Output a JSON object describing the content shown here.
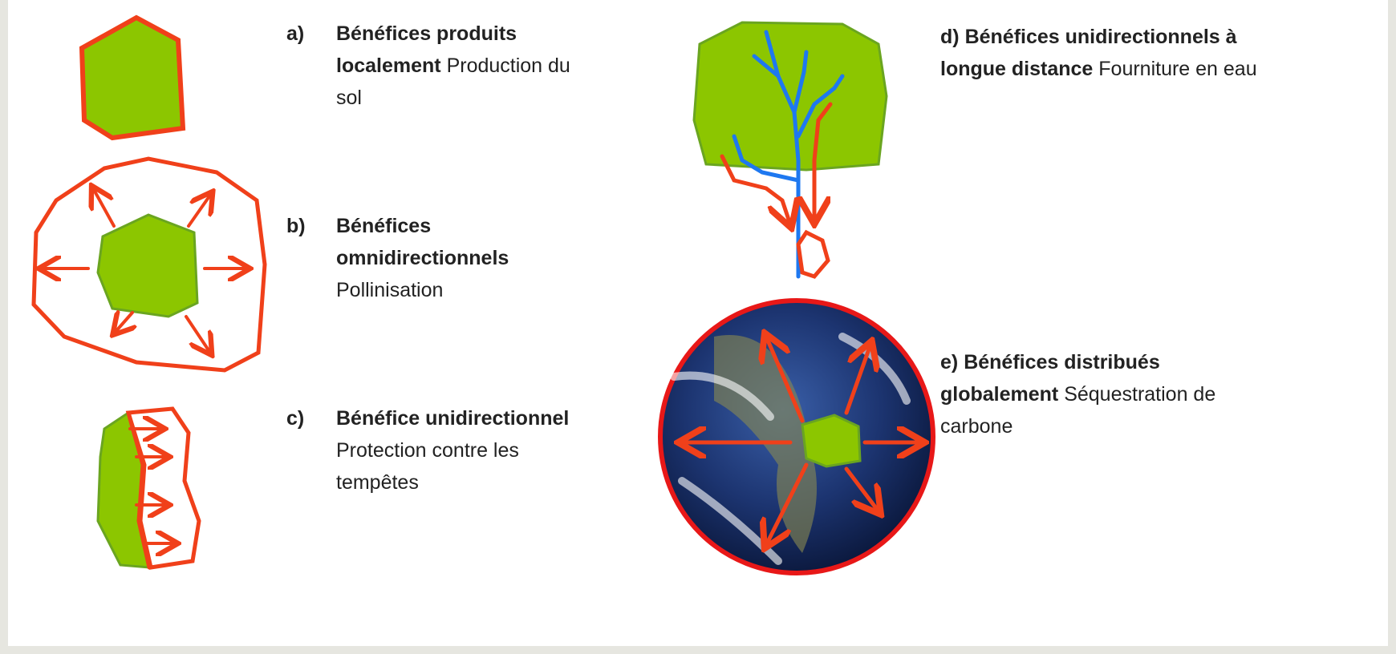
{
  "items": [
    {
      "marker": "a)",
      "title": "Bénéfices produits localement",
      "description": "Production du sol"
    },
    {
      "marker": "b)",
      "title": "Bénéfices omnidirectionnels",
      "description": "Pollinisation"
    },
    {
      "marker": "c)",
      "title": "Bénéfice unidirectionnel",
      "description": "Protection contre les tempêtes"
    },
    {
      "marker": "d)",
      "title": "Bénéfices unidirectionnels à longue distance",
      "description": "Fourniture en eau"
    },
    {
      "marker": "e)",
      "title": "Bénéfices distribués globalement",
      "description": "Séquestration de carbone"
    }
  ]
}
